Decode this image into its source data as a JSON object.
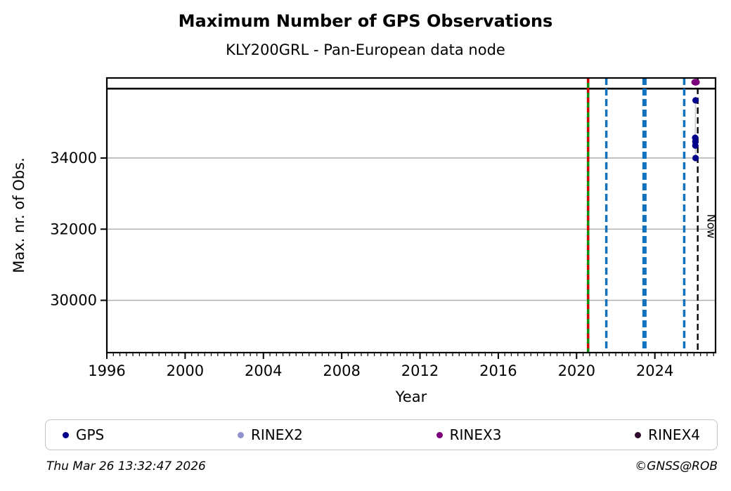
{
  "header": {
    "title": "Maximum Number of GPS Observations",
    "subtitle": "KLY200GRL - Pan-European data node"
  },
  "chart_data": {
    "type": "scatter",
    "title": "Maximum Number of GPS Observations",
    "subtitle": "KLY200GRL - Pan-European data node",
    "xlabel": "Year",
    "ylabel": "Max. nr. of Obs.",
    "xlim": [
      1996,
      2027.1
    ],
    "ylim": [
      28530,
      36250
    ],
    "x_major_ticks": [
      1996,
      2000,
      2004,
      2008,
      2012,
      2016,
      2020,
      2024
    ],
    "x_minor_interval_years": 0.33333,
    "y_ticks": [
      30000,
      32000,
      34000
    ],
    "grid": "horizontal-only",
    "grid_color": "#b3b3b3",
    "max_line": {
      "y": 35950,
      "color": "#000000"
    },
    "event_lines": [
      {
        "x": 2020.59,
        "style": "green-solid-red-dash",
        "color_main": "#0a8f0a",
        "color_dash": "#d40000",
        "width": 3.5
      },
      {
        "x": 2021.52,
        "style": "blue-dashed",
        "color_main": "#1272bd",
        "width": 3.5
      },
      {
        "x": 2023.47,
        "style": "blue-dashed",
        "color_main": "#1272bd",
        "width": 6
      },
      {
        "x": 2025.5,
        "style": "blue-dashed",
        "color_main": "#1272bd",
        "width": 3.5
      }
    ],
    "now_line": {
      "x": 2026.19,
      "label": "Now",
      "color": "#000000"
    },
    "connect_color": "#c8c8c8",
    "series": [
      {
        "name": "GPS",
        "color": "#00008B",
        "connect": true,
        "points": [
          [
            2026.08,
            35620
          ],
          [
            2026.06,
            34570
          ],
          [
            2026.07,
            34460
          ],
          [
            2026.07,
            34350
          ],
          [
            2026.08,
            34000
          ]
        ]
      },
      {
        "name": "RINEX2",
        "color": "#9090cc",
        "connect": false,
        "points": []
      },
      {
        "name": "RINEX3",
        "color": "#7d007d",
        "connect": false,
        "points": [
          [
            2026.08,
            36130
          ]
        ]
      },
      {
        "name": "RINEX4",
        "color": "#2d0a2d",
        "connect": false,
        "points": []
      }
    ],
    "legend": {
      "position": "bottom",
      "entries": [
        {
          "label": "GPS",
          "color": "#00008B"
        },
        {
          "label": "RINEX2",
          "color": "#9090cc"
        },
        {
          "label": "RINEX3",
          "color": "#7d007d"
        },
        {
          "label": "RINEX4",
          "color": "#2d0a2d"
        }
      ]
    }
  },
  "footer": {
    "timestamp": "Thu Mar 26 13:32:47 2026",
    "credit": "©GNSS@ROB"
  }
}
